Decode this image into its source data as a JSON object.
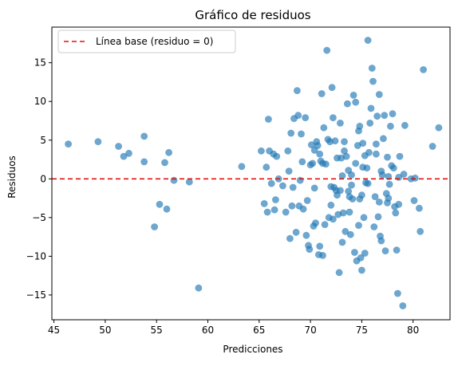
{
  "chart_data": {
    "type": "scatter",
    "title": "Gráfico de residuos",
    "xlabel": "Predicciones",
    "ylabel": "Residuos",
    "xlim": [
      44.8,
      83.6
    ],
    "ylim": [
      -18.2,
      19.6
    ],
    "xticks": [
      45,
      50,
      55,
      60,
      65,
      70,
      75,
      80
    ],
    "yticks": [
      -15,
      -10,
      -5,
      0,
      5,
      10,
      15
    ],
    "grid": false,
    "legend_position": "top-left",
    "colors": {
      "points": "#1f77b4",
      "baseline": "#e0140f"
    },
    "baseline": {
      "label": "Línea base (residuo = 0)",
      "y": 0,
      "style": "dashed"
    },
    "series": [
      {
        "points": [
          [
            46.4,
            4.5
          ],
          [
            49.3,
            4.8
          ],
          [
            51.3,
            4.2
          ],
          [
            51.8,
            2.9
          ],
          [
            52.3,
            3.3
          ],
          [
            53.8,
            5.5
          ],
          [
            53.8,
            2.2
          ],
          [
            54.8,
            -6.2
          ],
          [
            55.3,
            -3.3
          ],
          [
            55.8,
            2.1
          ],
          [
            56.0,
            -3.9
          ],
          [
            56.2,
            3.4
          ],
          [
            56.7,
            -0.2
          ],
          [
            58.2,
            -0.4
          ],
          [
            59.1,
            -14.1
          ],
          [
            63.3,
            1.6
          ],
          [
            65.2,
            3.6
          ],
          [
            65.5,
            -3.2
          ],
          [
            65.7,
            1.5
          ],
          [
            65.8,
            -4.3
          ],
          [
            65.9,
            7.7
          ],
          [
            66.0,
            3.6
          ],
          [
            66.2,
            -0.6
          ],
          [
            66.4,
            3.2
          ],
          [
            66.5,
            -4.0
          ],
          [
            66.6,
            -2.7
          ],
          [
            66.7,
            2.9
          ],
          [
            66.9,
            0.0
          ],
          [
            67.3,
            -0.9
          ],
          [
            67.6,
            -4.3
          ],
          [
            67.8,
            3.6
          ],
          [
            68.0,
            -7.7
          ],
          [
            68.1,
            5.9
          ],
          [
            68.2,
            -3.5
          ],
          [
            68.3,
            -1.1
          ],
          [
            68.4,
            7.8
          ],
          [
            68.6,
            -6.9
          ],
          [
            68.7,
            11.4
          ],
          [
            68.8,
            8.2
          ],
          [
            68.9,
            -3.5
          ],
          [
            69.1,
            5.8
          ],
          [
            69.2,
            2.2
          ],
          [
            69.3,
            -3.9
          ],
          [
            69.5,
            7.9
          ],
          [
            69.6,
            -7.3
          ],
          [
            69.8,
            -8.6
          ],
          [
            69.9,
            -9.1
          ],
          [
            70.1,
            4.4
          ],
          [
            70.2,
            2.0
          ],
          [
            70.3,
            -6.1
          ],
          [
            70.4,
            -1.2
          ],
          [
            70.5,
            -5.7
          ],
          [
            70.6,
            4.8
          ],
          [
            70.7,
            4.3
          ],
          [
            70.8,
            -9.8
          ],
          [
            70.9,
            -8.7
          ],
          [
            71.0,
            2.3
          ],
          [
            71.1,
            11.0
          ],
          [
            71.2,
            2.0
          ],
          [
            71.3,
            6.6
          ],
          [
            71.4,
            -5.9
          ],
          [
            71.5,
            1.9
          ],
          [
            71.6,
            16.6
          ],
          [
            71.8,
            -5.0
          ],
          [
            71.9,
            4.8
          ],
          [
            72.0,
            -1.0
          ],
          [
            72.1,
            11.8
          ],
          [
            72.2,
            7.9
          ],
          [
            72.3,
            -1.1
          ],
          [
            72.4,
            4.9
          ],
          [
            72.5,
            -1.5
          ],
          [
            72.6,
            2.7
          ],
          [
            72.7,
            -4.6
          ],
          [
            72.8,
            -12.1
          ],
          [
            72.9,
            -1.5
          ],
          [
            73.0,
            2.7
          ],
          [
            73.1,
            0.4
          ],
          [
            73.2,
            -4.4
          ],
          [
            73.3,
            3.6
          ],
          [
            73.4,
            -6.8
          ],
          [
            73.5,
            2.9
          ],
          [
            73.6,
            9.7
          ],
          [
            73.7,
            1.1
          ],
          [
            73.8,
            -2.3
          ],
          [
            73.9,
            -7.2
          ],
          [
            74.0,
            -0.8
          ],
          [
            74.1,
            -2.6
          ],
          [
            74.2,
            10.8
          ],
          [
            74.3,
            -9.5
          ],
          [
            74.4,
            2.0
          ],
          [
            74.5,
            -10.6
          ],
          [
            74.6,
            4.3
          ],
          [
            74.7,
            6.2
          ],
          [
            74.8,
            -2.6
          ],
          [
            74.9,
            -10.2
          ],
          [
            75.0,
            -11.8
          ],
          [
            75.1,
            4.6
          ],
          [
            75.2,
            -5.0
          ],
          [
            75.3,
            -9.6
          ],
          [
            75.4,
            -0.5
          ],
          [
            75.5,
            1.4
          ],
          [
            75.6,
            17.9
          ],
          [
            75.7,
            3.4
          ],
          [
            75.8,
            7.2
          ],
          [
            75.9,
            9.1
          ],
          [
            76.0,
            14.3
          ],
          [
            76.1,
            12.6
          ],
          [
            76.2,
            -6.2
          ],
          [
            76.3,
            -2.3
          ],
          [
            76.4,
            3.2
          ],
          [
            76.5,
            8.1
          ],
          [
            76.6,
            -4.9
          ],
          [
            76.7,
            10.9
          ],
          [
            76.8,
            -7.4
          ],
          [
            76.9,
            1.0
          ],
          [
            77.0,
            0.5
          ],
          [
            77.1,
            5.2
          ],
          [
            77.2,
            8.2
          ],
          [
            77.3,
            -9.3
          ],
          [
            77.4,
            -1.9
          ],
          [
            77.5,
            2.8
          ],
          [
            77.6,
            -2.5
          ],
          [
            77.7,
            -0.7
          ],
          [
            77.8,
            6.8
          ],
          [
            77.9,
            1.7
          ],
          [
            78.0,
            8.4
          ],
          [
            78.1,
            1.4
          ],
          [
            78.2,
            -3.6
          ],
          [
            78.3,
            -4.4
          ],
          [
            78.4,
            -9.2
          ],
          [
            78.5,
            -14.8
          ],
          [
            78.6,
            0.2
          ],
          [
            78.7,
            2.9
          ],
          [
            79.0,
            -16.4
          ],
          [
            79.2,
            6.9
          ],
          [
            80.1,
            -2.8
          ],
          [
            80.6,
            -3.8
          ],
          [
            80.7,
            -6.8
          ],
          [
            81.0,
            14.1
          ],
          [
            81.9,
            4.2
          ],
          [
            82.5,
            6.6
          ],
          [
            67.9,
            1.0
          ],
          [
            69.0,
            -0.2
          ],
          [
            70.0,
            1.8
          ],
          [
            71.7,
            5.1
          ],
          [
            72.6,
            -2.1
          ],
          [
            73.3,
            4.8
          ],
          [
            74.0,
            0.5
          ],
          [
            74.8,
            6.8
          ],
          [
            75.6,
            -0.6
          ],
          [
            76.4,
            4.5
          ],
          [
            77.6,
            0.3
          ],
          [
            79.1,
            0.6
          ],
          [
            80.2,
            0.1
          ],
          [
            72.0,
            -3.4
          ],
          [
            73.8,
            -4.3
          ],
          [
            75.0,
            -2.1
          ],
          [
            76.7,
            -3.0
          ],
          [
            70.4,
            3.7
          ],
          [
            72.9,
            7.2
          ],
          [
            74.4,
            9.9
          ],
          [
            75.3,
            3.0
          ],
          [
            76.9,
            -8.0
          ],
          [
            71.2,
            -9.9
          ],
          [
            72.2,
            -5.2
          ],
          [
            73.7,
            -1.6
          ],
          [
            75.1,
            1.5
          ],
          [
            77.5,
            -3.1
          ],
          [
            78.6,
            -3.3
          ],
          [
            79.8,
            0.0
          ],
          [
            69.7,
            -2.8
          ],
          [
            70.9,
            3.2
          ],
          [
            73.1,
            -8.2
          ],
          [
            74.7,
            -6.0
          ]
        ]
      }
    ]
  }
}
